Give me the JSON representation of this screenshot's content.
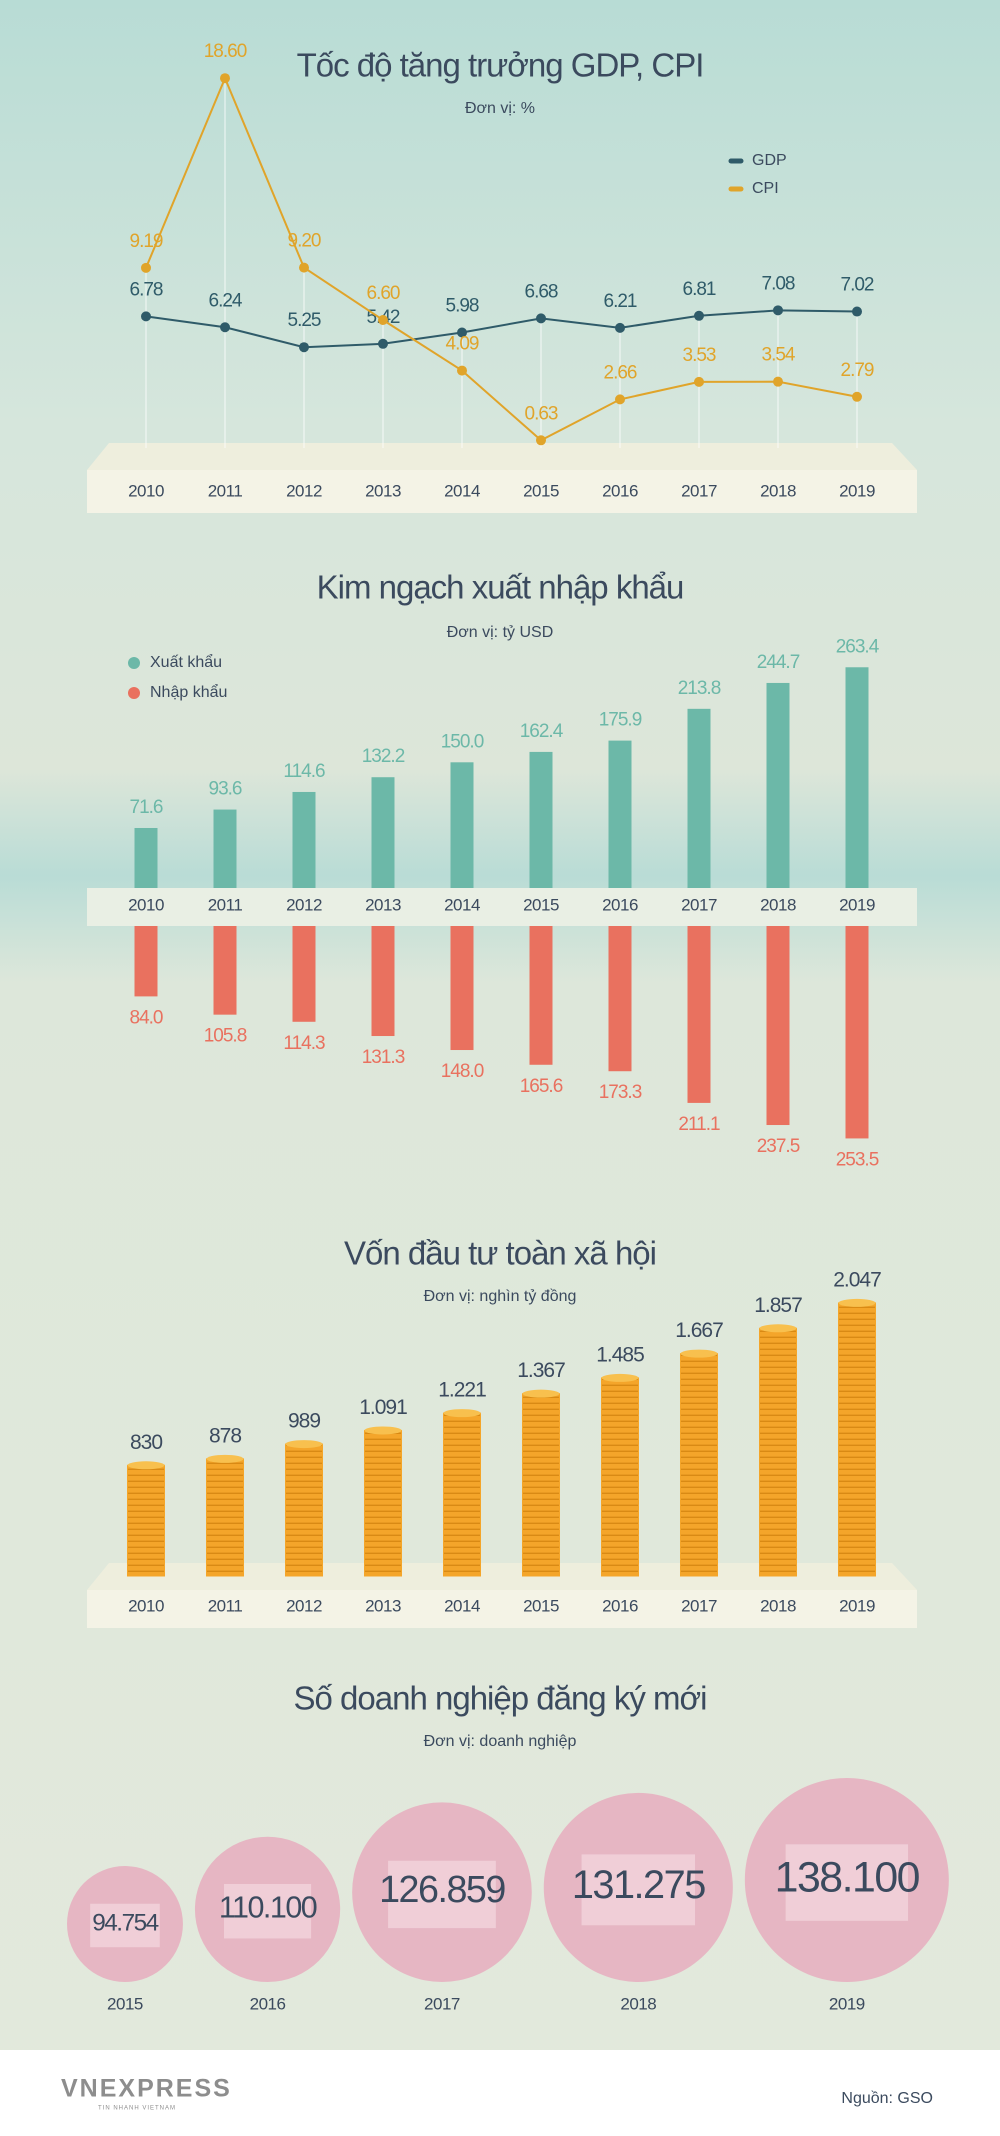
{
  "chart_data": [
    {
      "type": "line",
      "title": "Tốc độ tăng trưởng GDP, CPI",
      "subtitle": "Đơn vị: %",
      "categories": [
        "2010",
        "2011",
        "2012",
        "2013",
        "2014",
        "2015",
        "2016",
        "2017",
        "2018",
        "2019"
      ],
      "series": [
        {
          "name": "GDP",
          "color": "#2f5b69",
          "values": [
            6.78,
            6.24,
            5.25,
            5.42,
            5.98,
            6.68,
            6.21,
            6.81,
            7.08,
            7.02
          ]
        },
        {
          "name": "CPI",
          "color": "#e0a42a",
          "values": [
            9.19,
            18.6,
            9.2,
            6.6,
            4.09,
            0.63,
            2.66,
            3.53,
            3.54,
            2.79
          ],
          "value_labels": [
            "9.19",
            "18.60",
            "9.20",
            "6.60",
            "4.09",
            "0.63",
            "2.66",
            "3.53",
            "3.54",
            "2.79"
          ]
        }
      ]
    },
    {
      "type": "bar",
      "title": "Kim ngạch xuất nhập khẩu",
      "subtitle": "Đơn vị: tỷ USD",
      "categories": [
        "2010",
        "2011",
        "2012",
        "2013",
        "2014",
        "2015",
        "2016",
        "2017",
        "2018",
        "2019"
      ],
      "series": [
        {
          "name": "Xuất khẩu",
          "color": "#6cb8a8",
          "values": [
            71.6,
            93.6,
            114.6,
            132.2,
            150.0,
            162.4,
            175.9,
            213.8,
            244.7,
            263.4
          ],
          "value_labels": [
            "71.6",
            "93.6",
            "114.6",
            "132.2",
            "150.0",
            "162.4",
            "175.9",
            "213.8",
            "244.7",
            "263.4"
          ]
        },
        {
          "name": "Nhập khẩu",
          "color": "#e9715f",
          "values": [
            84.0,
            105.8,
            114.3,
            131.3,
            148.0,
            165.6,
            173.3,
            211.1,
            237.5,
            253.5
          ],
          "value_labels": [
            "84.0",
            "105.8",
            "114.3",
            "131.3",
            "148.0",
            "165.6",
            "173.3",
            "211.1",
            "237.5",
            "253.5"
          ]
        }
      ]
    },
    {
      "type": "pictorial",
      "title": "Vốn đầu tư toàn xã hội",
      "subtitle": "Đơn vị: nghìn tỷ đồng",
      "categories": [
        "2010",
        "2011",
        "2012",
        "2013",
        "2014",
        "2015",
        "2016",
        "2017",
        "2018",
        "2019"
      ],
      "color": "#f4a52a",
      "values": [
        830,
        878,
        989,
        1091,
        1221,
        1367,
        1485,
        1667,
        1857,
        2047
      ],
      "value_labels": [
        "830",
        "878",
        "989",
        "1.091",
        "1.221",
        "1.367",
        "1.485",
        "1.667",
        "1.857",
        "2.047"
      ]
    },
    {
      "type": "bubble",
      "title": "Số doanh nghiệp đăng ký mới",
      "subtitle": "Đơn vị: doanh nghiệp",
      "categories": [
        "2015",
        "2016",
        "2017",
        "2018",
        "2019"
      ],
      "color": "#e6b6c3",
      "values": [
        94754,
        110100,
        126859,
        131275,
        138100
      ],
      "value_labels": [
        "94.754",
        "110.100",
        "126.859",
        "131.275",
        "138.100"
      ]
    }
  ],
  "footer": {
    "logo": "VNEXPRESS",
    "tagline": "TIN NHANH VIETNAM",
    "source": "Nguồn: GSO"
  }
}
